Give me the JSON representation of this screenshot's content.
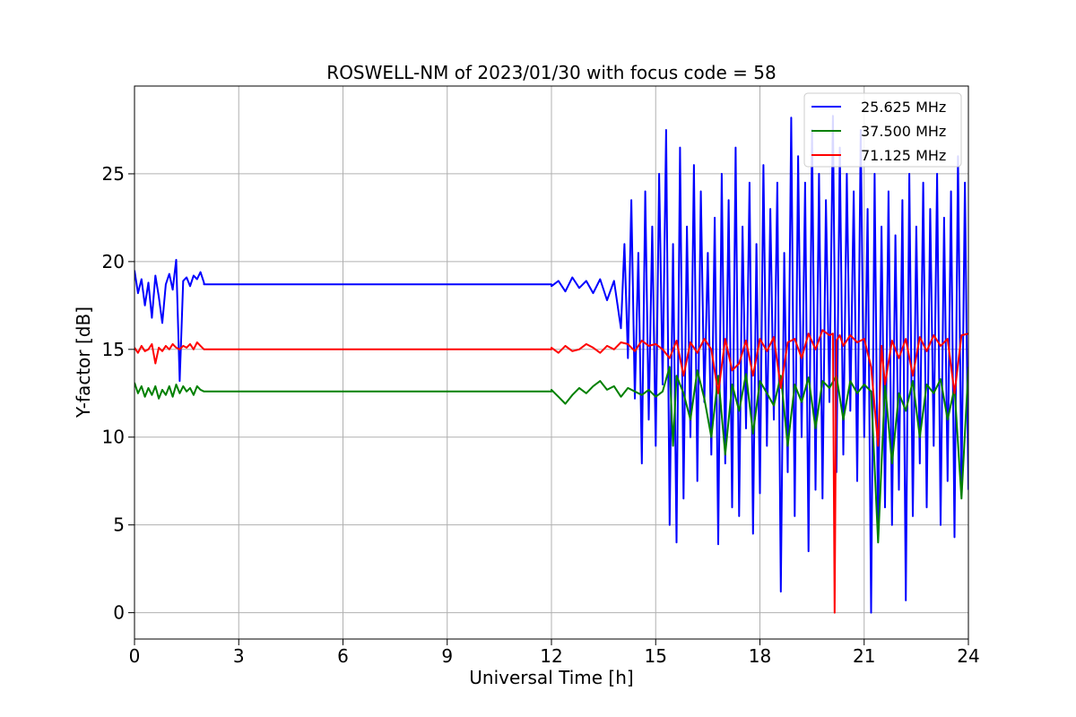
{
  "chart_data": {
    "type": "line",
    "title": "ROSWELL-NM of 2023/01/30 with focus code = 58",
    "xlabel": "Universal Time [h]",
    "ylabel": "Y-factor [dB]",
    "xlim": [
      0,
      24
    ],
    "ylim": [
      -1.5,
      30
    ],
    "xticks": [
      0,
      3,
      6,
      9,
      12,
      15,
      18,
      21,
      24
    ],
    "yticks": [
      0,
      5,
      10,
      15,
      20,
      25
    ],
    "grid": true,
    "legend_position": "top-right",
    "series": [
      {
        "name": "25.625 MHz",
        "color": "#0000ff",
        "x": [
          0.0,
          0.1,
          0.2,
          0.3,
          0.4,
          0.5,
          0.6,
          0.7,
          0.8,
          0.9,
          1.0,
          1.1,
          1.2,
          1.3,
          1.4,
          1.5,
          1.6,
          1.7,
          1.8,
          1.9,
          2.0,
          2.0,
          12.0,
          12.0,
          12.2,
          12.4,
          12.6,
          12.8,
          13.0,
          13.2,
          13.4,
          13.6,
          13.8,
          14.0,
          14.1,
          14.2,
          14.3,
          14.4,
          14.5,
          14.6,
          14.7,
          14.8,
          14.9,
          15.0,
          15.1,
          15.2,
          15.3,
          15.4,
          15.5,
          15.6,
          15.7,
          15.8,
          15.9,
          16.0,
          16.1,
          16.2,
          16.3,
          16.4,
          16.5,
          16.6,
          16.7,
          16.8,
          16.9,
          17.0,
          17.1,
          17.2,
          17.3,
          17.4,
          17.5,
          17.6,
          17.7,
          17.8,
          17.9,
          18.0,
          18.1,
          18.2,
          18.3,
          18.4,
          18.5,
          18.6,
          18.7,
          18.8,
          18.9,
          19.0,
          19.1,
          19.2,
          19.3,
          19.4,
          19.5,
          19.6,
          19.7,
          19.8,
          19.9,
          20.0,
          20.1,
          20.2,
          20.3,
          20.4,
          20.5,
          20.6,
          20.7,
          20.8,
          20.9,
          21.0,
          21.1,
          21.2,
          21.3,
          21.4,
          21.5,
          21.6,
          21.7,
          21.8,
          21.9,
          22.0,
          22.1,
          22.2,
          22.3,
          22.4,
          22.5,
          22.6,
          22.7,
          22.8,
          22.9,
          23.0,
          23.1,
          23.2,
          23.3,
          23.4,
          23.5,
          23.6,
          23.7,
          23.8,
          23.9,
          24.0
        ],
        "y": [
          19.5,
          18.2,
          19.0,
          17.5,
          18.8,
          16.8,
          19.2,
          18.0,
          16.5,
          18.7,
          19.3,
          18.4,
          20.1,
          13.2,
          18.9,
          19.1,
          18.6,
          19.2,
          19.0,
          19.4,
          18.8,
          18.7,
          18.7,
          18.6,
          18.9,
          18.3,
          19.1,
          18.5,
          18.9,
          18.2,
          19.0,
          17.8,
          18.9,
          16.2,
          21.0,
          14.5,
          23.5,
          12.2,
          20.5,
          8.5,
          24.0,
          11.0,
          22.0,
          9.5,
          25.0,
          13.0,
          27.5,
          5.0,
          21.0,
          4.0,
          26.5,
          6.5,
          22.0,
          10.0,
          25.5,
          7.5,
          24.0,
          12.0,
          20.5,
          9.0,
          22.5,
          3.9,
          25.0,
          8.5,
          23.5,
          6.0,
          26.5,
          5.5,
          22.0,
          10.5,
          24.5,
          4.5,
          21.0,
          6.8,
          25.5,
          9.5,
          23.0,
          11.0,
          24.5,
          1.2,
          20.5,
          8.0,
          28.2,
          5.5,
          26.0,
          10.0,
          24.5,
          3.5,
          27.5,
          7.0,
          25.0,
          6.5,
          23.5,
          12.0,
          28.3,
          8.0,
          26.5,
          9.0,
          25.0,
          11.5,
          24.0,
          7.5,
          27.5,
          10.0,
          23.0,
          0.0,
          25.0,
          4.5,
          22.0,
          6.0,
          24.0,
          5.0,
          21.5,
          7.0,
          23.5,
          0.7,
          25.0,
          5.5,
          22.0,
          8.5,
          24.5,
          6.0,
          23.0,
          9.5,
          25.0,
          5.0,
          22.5,
          7.5,
          24.0,
          4.3,
          26.0,
          7.0,
          24.5,
          7.0
        ]
      },
      {
        "name": "37.500 MHz",
        "color": "#008000",
        "x": [
          0.0,
          0.1,
          0.2,
          0.3,
          0.4,
          0.5,
          0.6,
          0.7,
          0.8,
          0.9,
          1.0,
          1.1,
          1.2,
          1.3,
          1.4,
          1.5,
          1.6,
          1.7,
          1.8,
          1.9,
          2.0,
          2.0,
          12.0,
          12.0,
          12.2,
          12.4,
          12.6,
          12.8,
          13.0,
          13.2,
          13.4,
          13.6,
          13.8,
          14.0,
          14.2,
          14.4,
          14.6,
          14.8,
          15.0,
          15.2,
          15.4,
          15.5,
          15.6,
          15.8,
          16.0,
          16.2,
          16.4,
          16.6,
          16.8,
          17.0,
          17.2,
          17.4,
          17.6,
          17.8,
          18.0,
          18.2,
          18.4,
          18.6,
          18.8,
          19.0,
          19.2,
          19.4,
          19.6,
          19.8,
          20.0,
          20.2,
          20.4,
          20.6,
          20.8,
          21.0,
          21.2,
          21.4,
          21.6,
          21.8,
          22.0,
          22.2,
          22.4,
          22.6,
          22.8,
          23.0,
          23.2,
          23.4,
          23.6,
          23.8,
          24.0
        ],
        "y": [
          13.1,
          12.5,
          12.9,
          12.3,
          12.8,
          12.4,
          12.9,
          12.2,
          12.7,
          12.4,
          12.9,
          12.3,
          13.0,
          12.5,
          12.9,
          12.6,
          12.8,
          12.4,
          12.9,
          12.7,
          12.6,
          12.6,
          12.6,
          12.7,
          12.3,
          11.9,
          12.4,
          12.8,
          12.5,
          12.9,
          13.2,
          12.7,
          12.9,
          12.3,
          12.8,
          12.6,
          12.4,
          12.7,
          12.3,
          12.6,
          14.0,
          9.5,
          13.5,
          12.5,
          11.0,
          13.8,
          12.2,
          10.0,
          13.5,
          9.0,
          13.0,
          11.5,
          13.6,
          10.2,
          13.2,
          12.5,
          11.8,
          13.5,
          9.5,
          13.0,
          12.0,
          13.4,
          10.5,
          13.2,
          12.8,
          13.5,
          11.0,
          13.2,
          12.5,
          13.0,
          12.6,
          4.0,
          13.0,
          8.5,
          12.5,
          11.5,
          13.2,
          10.0,
          13.0,
          12.5,
          13.3,
          11.0,
          12.8,
          6.5,
          14.0
        ]
      },
      {
        "name": "71.125 MHz",
        "color": "#ff0000",
        "x": [
          0.0,
          0.1,
          0.2,
          0.3,
          0.4,
          0.5,
          0.6,
          0.7,
          0.8,
          0.9,
          1.0,
          1.1,
          1.2,
          1.3,
          1.4,
          1.5,
          1.6,
          1.7,
          1.8,
          1.9,
          2.0,
          2.0,
          12.0,
          12.0,
          12.2,
          12.4,
          12.6,
          12.8,
          13.0,
          13.2,
          13.4,
          13.6,
          13.8,
          14.0,
          14.2,
          14.4,
          14.6,
          14.8,
          15.0,
          15.2,
          15.4,
          15.6,
          15.8,
          16.0,
          16.2,
          16.4,
          16.6,
          16.8,
          17.0,
          17.2,
          17.4,
          17.6,
          17.8,
          18.0,
          18.2,
          18.4,
          18.6,
          18.8,
          19.0,
          19.2,
          19.4,
          19.6,
          19.8,
          20.0,
          20.1,
          20.15,
          20.2,
          20.3,
          20.4,
          20.6,
          20.8,
          21.0,
          21.2,
          21.4,
          21.5,
          21.6,
          21.8,
          22.0,
          22.2,
          22.4,
          22.6,
          22.8,
          23.0,
          23.2,
          23.4,
          23.6,
          23.8,
          24.0
        ],
        "y": [
          15.1,
          14.8,
          15.2,
          14.9,
          15.0,
          15.3,
          14.2,
          15.1,
          14.9,
          15.2,
          15.0,
          15.3,
          15.1,
          15.0,
          15.2,
          15.1,
          15.3,
          15.0,
          15.4,
          15.2,
          15.0,
          15.0,
          15.0,
          15.1,
          14.8,
          15.2,
          14.9,
          15.0,
          15.3,
          15.1,
          14.8,
          15.2,
          15.0,
          15.4,
          15.3,
          14.9,
          15.5,
          15.2,
          15.3,
          15.0,
          14.5,
          15.5,
          13.5,
          15.4,
          14.8,
          15.6,
          15.0,
          12.5,
          15.6,
          13.8,
          14.2,
          15.5,
          13.5,
          15.6,
          14.9,
          15.7,
          12.8,
          15.4,
          15.6,
          14.5,
          15.9,
          15.0,
          16.1,
          15.8,
          15.9,
          0.0,
          15.5,
          15.8,
          15.2,
          15.8,
          15.4,
          15.6,
          14.0,
          9.5,
          15.2,
          13.0,
          15.5,
          14.5,
          15.6,
          13.5,
          15.7,
          14.9,
          15.8,
          15.2,
          15.6,
          12.5,
          15.8,
          15.9
        ]
      }
    ]
  }
}
